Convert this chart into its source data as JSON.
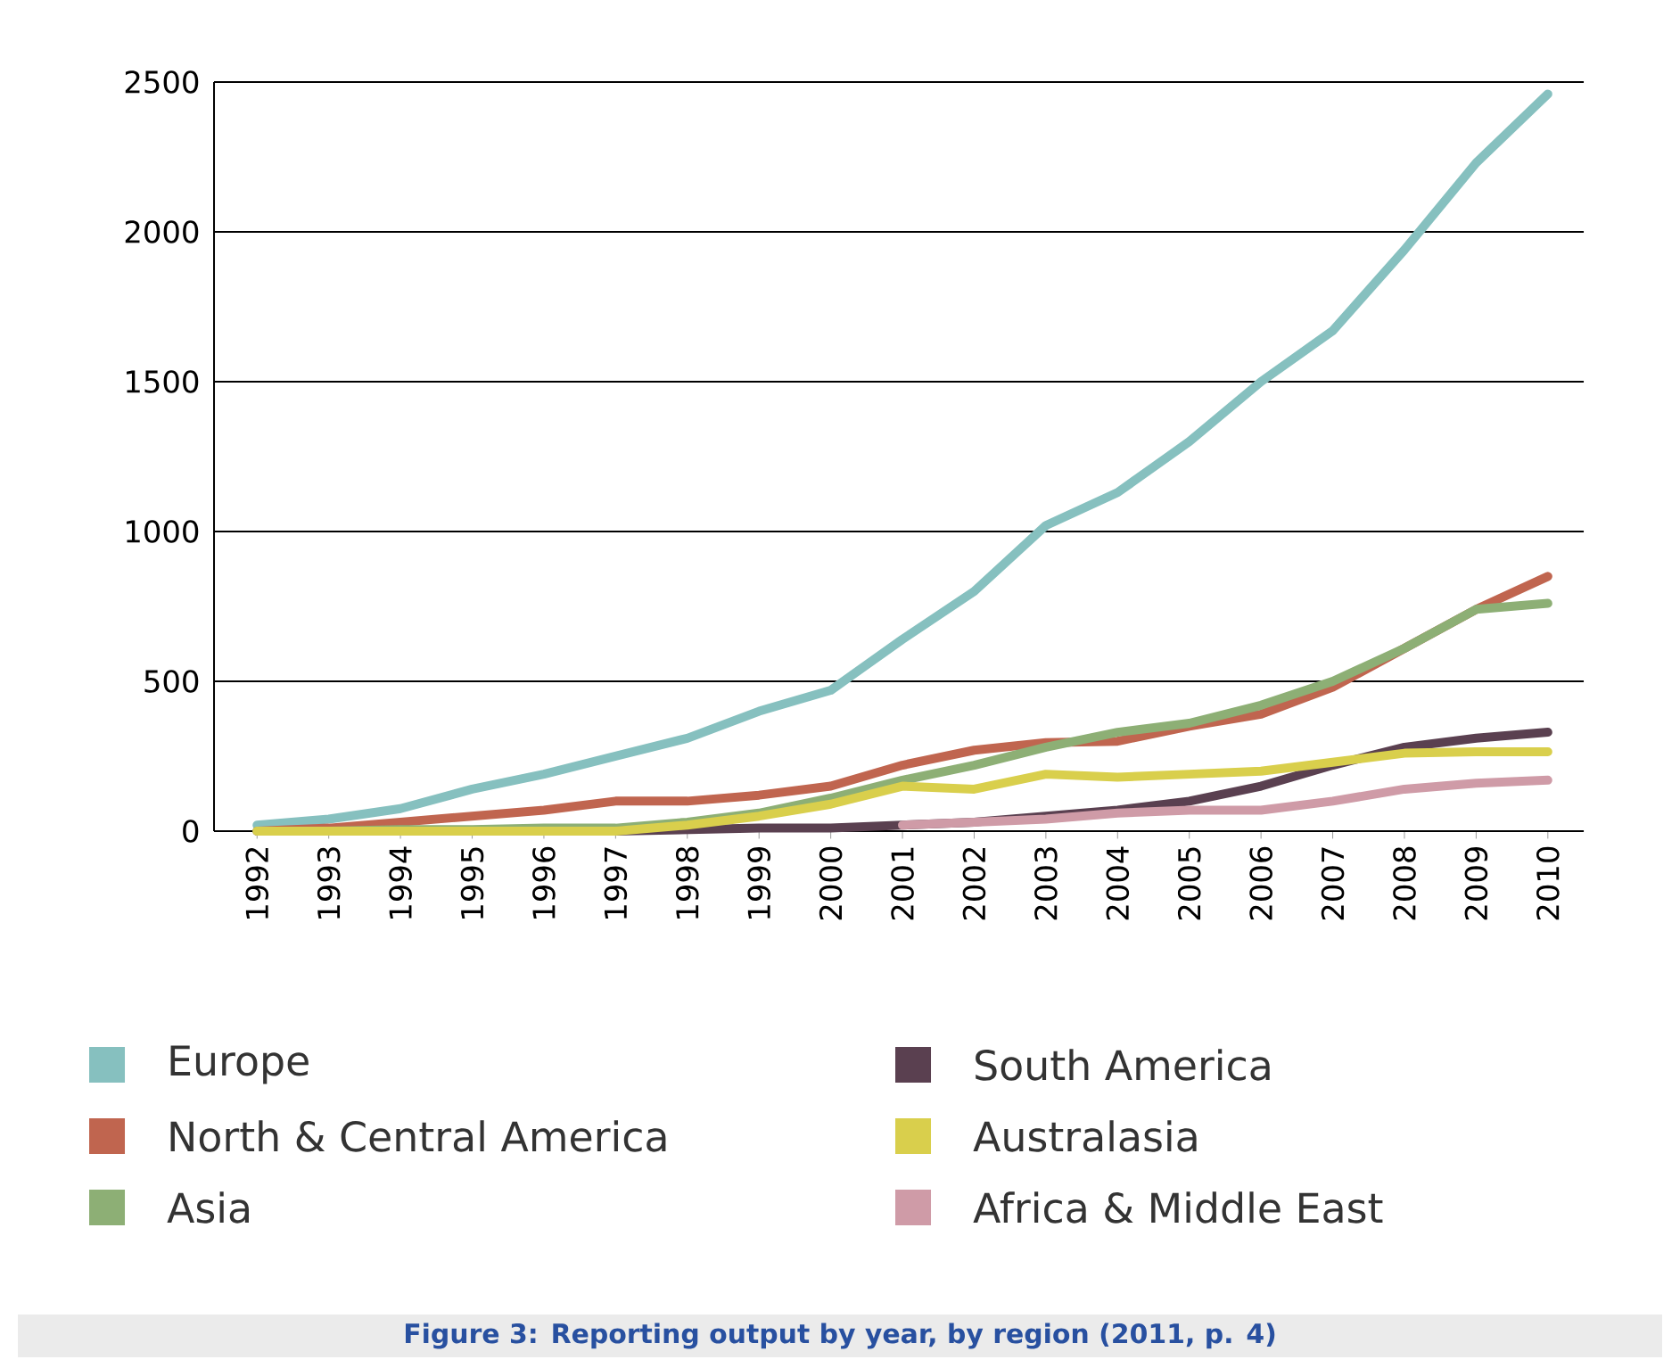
{
  "chart_data": {
    "type": "line",
    "x": [
      1992,
      1993,
      1994,
      1995,
      1996,
      1997,
      1998,
      1999,
      2000,
      2001,
      2002,
      2003,
      2004,
      2005,
      2006,
      2007,
      2008,
      2009,
      2010
    ],
    "xlim": [
      1991.4,
      2010.5
    ],
    "xticks": [
      1992,
      1993,
      1994,
      1995,
      1996,
      1997,
      1998,
      1999,
      2000,
      2001,
      2002,
      2003,
      2004,
      2005,
      2006,
      2007,
      2008,
      2009,
      2010
    ],
    "ylim": [
      0,
      2500
    ],
    "yticks": [
      0,
      500,
      1000,
      1500,
      2000,
      2500
    ],
    "grid": "y",
    "legend": "bottom",
    "marker": "none",
    "line_style": "solid",
    "series": [
      {
        "name": "Europe",
        "color": "#86c0bf",
        "values": [
          20,
          40,
          75,
          140,
          190,
          250,
          310,
          400,
          470,
          640,
          800,
          1020,
          1130,
          1300,
          1500,
          1670,
          1940,
          2230,
          2460
        ]
      },
      {
        "name": "North & Central America",
        "color": "#c0654f",
        "values": [
          0,
          10,
          30,
          50,
          70,
          100,
          100,
          120,
          150,
          220,
          270,
          295,
          300,
          350,
          390,
          480,
          610,
          740,
          850
        ]
      },
      {
        "name": "Asia",
        "color": "#8daf75",
        "values": [
          0,
          0,
          5,
          5,
          10,
          10,
          30,
          60,
          110,
          170,
          220,
          280,
          330,
          360,
          420,
          500,
          610,
          740,
          760
        ]
      },
      {
        "name": "South America",
        "color": "#5a4050",
        "values": [
          null,
          null,
          null,
          null,
          null,
          0,
          5,
          10,
          10,
          20,
          30,
          50,
          70,
          100,
          150,
          220,
          280,
          310,
          330
        ]
      },
      {
        "name": "Australasia",
        "color": "#d9cf4c",
        "values": [
          0,
          0,
          0,
          0,
          0,
          0,
          20,
          50,
          90,
          150,
          140,
          190,
          180,
          190,
          200,
          230,
          260,
          265,
          265
        ]
      },
      {
        "name": "Africa & Middle East",
        "color": "#cf9ba7",
        "values": [
          null,
          null,
          null,
          null,
          null,
          null,
          null,
          null,
          null,
          20,
          30,
          40,
          60,
          70,
          70,
          100,
          140,
          160,
          170
        ]
      }
    ],
    "annotations": [
      "Figure 3:  Reporting output by year, by region (2011, p. 4)"
    ]
  }
}
